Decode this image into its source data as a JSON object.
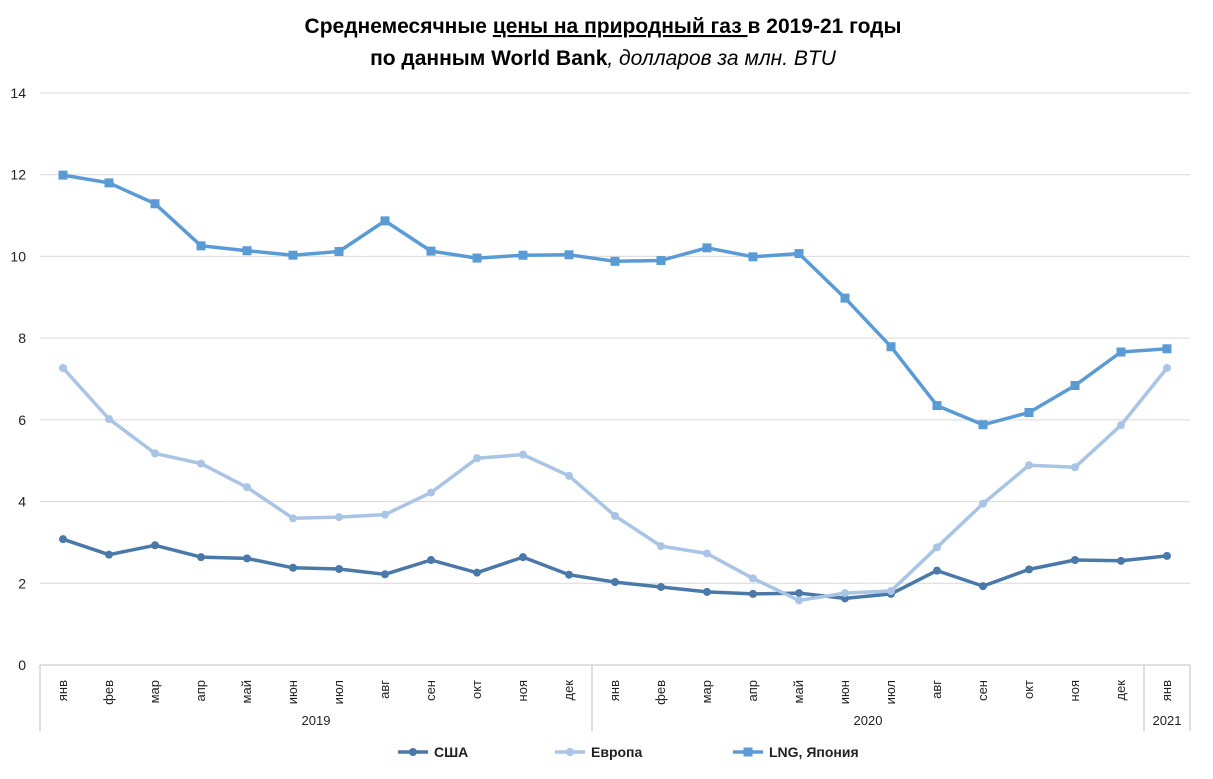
{
  "chart_data": {
    "type": "line",
    "title_parts": {
      "line1_a": "Среднемесячные ",
      "line1_b": "цены на природный газ ",
      "line1_c": "в 2019-21 годы",
      "line2_a": "по данным World Bank",
      "line2_b": ", долларов за млн. BTU"
    },
    "ylim": [
      0,
      14
    ],
    "yticks": [
      0,
      2,
      4,
      6,
      8,
      10,
      12,
      14
    ],
    "grid": true,
    "legend_position": "bottom",
    "categories": [
      "янв",
      "фев",
      "мар",
      "апр",
      "май",
      "июн",
      "июл",
      "авг",
      "сен",
      "окт",
      "ноя",
      "дек",
      "янв",
      "фев",
      "мар",
      "апр",
      "май",
      "июн",
      "июл",
      "авг",
      "сен",
      "окт",
      "ноя",
      "дек",
      "янв"
    ],
    "years": [
      {
        "label": "2019",
        "start": 0,
        "end": 11
      },
      {
        "label": "2020",
        "start": 12,
        "end": 23
      },
      {
        "label": "2021",
        "start": 24,
        "end": 24
      }
    ],
    "series": [
      {
        "name": "США",
        "color": "#4a78a8",
        "marker": "circle",
        "values": [
          3.08,
          2.7,
          2.93,
          2.64,
          2.61,
          2.38,
          2.35,
          2.22,
          2.57,
          2.26,
          2.64,
          2.21,
          2.03,
          1.91,
          1.79,
          1.74,
          1.76,
          1.63,
          1.74,
          2.31,
          1.93,
          2.34,
          2.57,
          2.55,
          2.67
        ]
      },
      {
        "name": "Европа",
        "color": "#a9c4e4",
        "marker": "circle",
        "values": [
          7.27,
          6.02,
          5.18,
          4.93,
          4.35,
          3.59,
          3.62,
          3.68,
          4.22,
          5.06,
          5.15,
          4.63,
          3.65,
          2.91,
          2.73,
          2.12,
          1.58,
          1.76,
          1.81,
          2.88,
          3.95,
          4.89,
          4.84,
          5.87,
          7.27
        ]
      },
      {
        "name": "LNG, Япония",
        "color": "#5b9bd5",
        "marker": "square",
        "values": [
          11.99,
          11.8,
          11.29,
          10.26,
          10.14,
          10.03,
          10.12,
          10.87,
          10.13,
          9.96,
          10.03,
          10.04,
          9.88,
          9.9,
          10.21,
          9.99,
          10.07,
          8.98,
          7.79,
          6.35,
          5.88,
          6.18,
          6.84,
          7.66,
          7.74
        ]
      }
    ]
  }
}
